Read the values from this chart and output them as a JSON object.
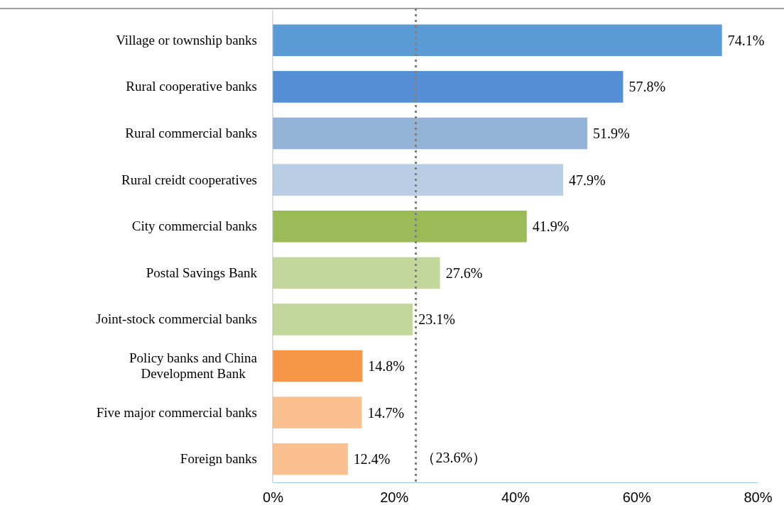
{
  "chart_data": {
    "type": "bar",
    "orientation": "horizontal",
    "categories": [
      "Village or township banks",
      "Rural cooperative banks",
      "Rural commercial banks",
      "Rural creidt cooperatives",
      "City commercial banks",
      "Postal Savings Bank",
      "Joint-stock commercial banks",
      "Policy banks and China Development Bank",
      "Five major commercial banks",
      "Foreign banks"
    ],
    "values": [
      74.1,
      57.8,
      51.9,
      47.9,
      41.9,
      27.6,
      23.1,
      14.8,
      14.7,
      12.4
    ],
    "colors": [
      "#5b9bd5",
      "#558ed5",
      "#95b3d7",
      "#b9cde5",
      "#9bbb59",
      "#c3d69b",
      "#c3d69b",
      "#f79646",
      "#fac090",
      "#fac090"
    ],
    "value_labels": [
      "74.1%",
      "57.8%",
      "51.9%",
      "47.9%",
      "41.9%",
      "27.6%",
      "23.1%",
      "14.8%",
      "14.7%",
      "12.4%"
    ],
    "xlim": [
      0,
      80
    ],
    "xticks": [
      {
        "value": 0,
        "label": "0%"
      },
      {
        "value": 20,
        "label": "20%"
      },
      {
        "value": 40,
        "label": "40%"
      },
      {
        "value": 60,
        "label": "60%"
      },
      {
        "value": 80,
        "label": "80%"
      }
    ],
    "ref_lines": [
      {
        "axis": "x",
        "value": 23.6,
        "label": "（23.6%）",
        "color": "#7f7f7f",
        "line_style": "dotted"
      }
    ],
    "grid": false
  }
}
